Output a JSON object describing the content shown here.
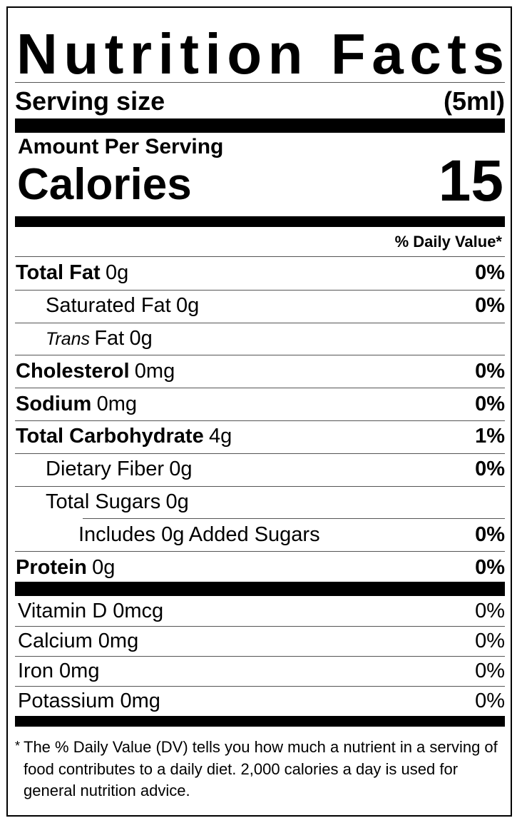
{
  "title": "Nutrition Facts",
  "serving": {
    "label": "Serving size",
    "value": "(5ml)"
  },
  "amount_per_serving": "Amount Per Serving",
  "calories": {
    "label": "Calories",
    "value": 15
  },
  "daily_value_header": "% Daily Value*",
  "nutrients": [
    {
      "name": "Total Fat",
      "amount": "0g",
      "dv": "0%"
    },
    {
      "name": "Saturated Fat",
      "amount": "0g",
      "dv": "0%"
    },
    {
      "name_italic": "Trans",
      "name": "Fat",
      "amount": "0g"
    },
    {
      "name": "Cholesterol",
      "amount": "0mg",
      "dv": "0%"
    },
    {
      "name": "Sodium",
      "amount": "0mg",
      "dv": "0%"
    },
    {
      "name": "Total Carbohydrate",
      "amount": "4g",
      "dv": "1%"
    },
    {
      "name": "Dietary Fiber",
      "amount": "0g",
      "dv": "0%"
    },
    {
      "name": "Total Sugars",
      "amount": "0g"
    },
    {
      "name": "Includes 0g Added Sugars",
      "dv": "0%"
    },
    {
      "name": "Protein",
      "amount": "0g",
      "dv": "0%"
    }
  ],
  "vitamins": [
    {
      "name": "Vitamin D 0mcg",
      "dv": "0%"
    },
    {
      "name": "Calcium 0mg",
      "dv": "0%"
    },
    {
      "name": "Iron 0mg",
      "dv": "0%"
    },
    {
      "name": "Potassium 0mg",
      "dv": "0%"
    }
  ],
  "footnote": {
    "marker": "*",
    "text": "The % Daily Value (DV) tells you how much a nutrient in a serving of food contributes to a daily diet. 2,000 calories a day is used for general nutrition advice."
  }
}
